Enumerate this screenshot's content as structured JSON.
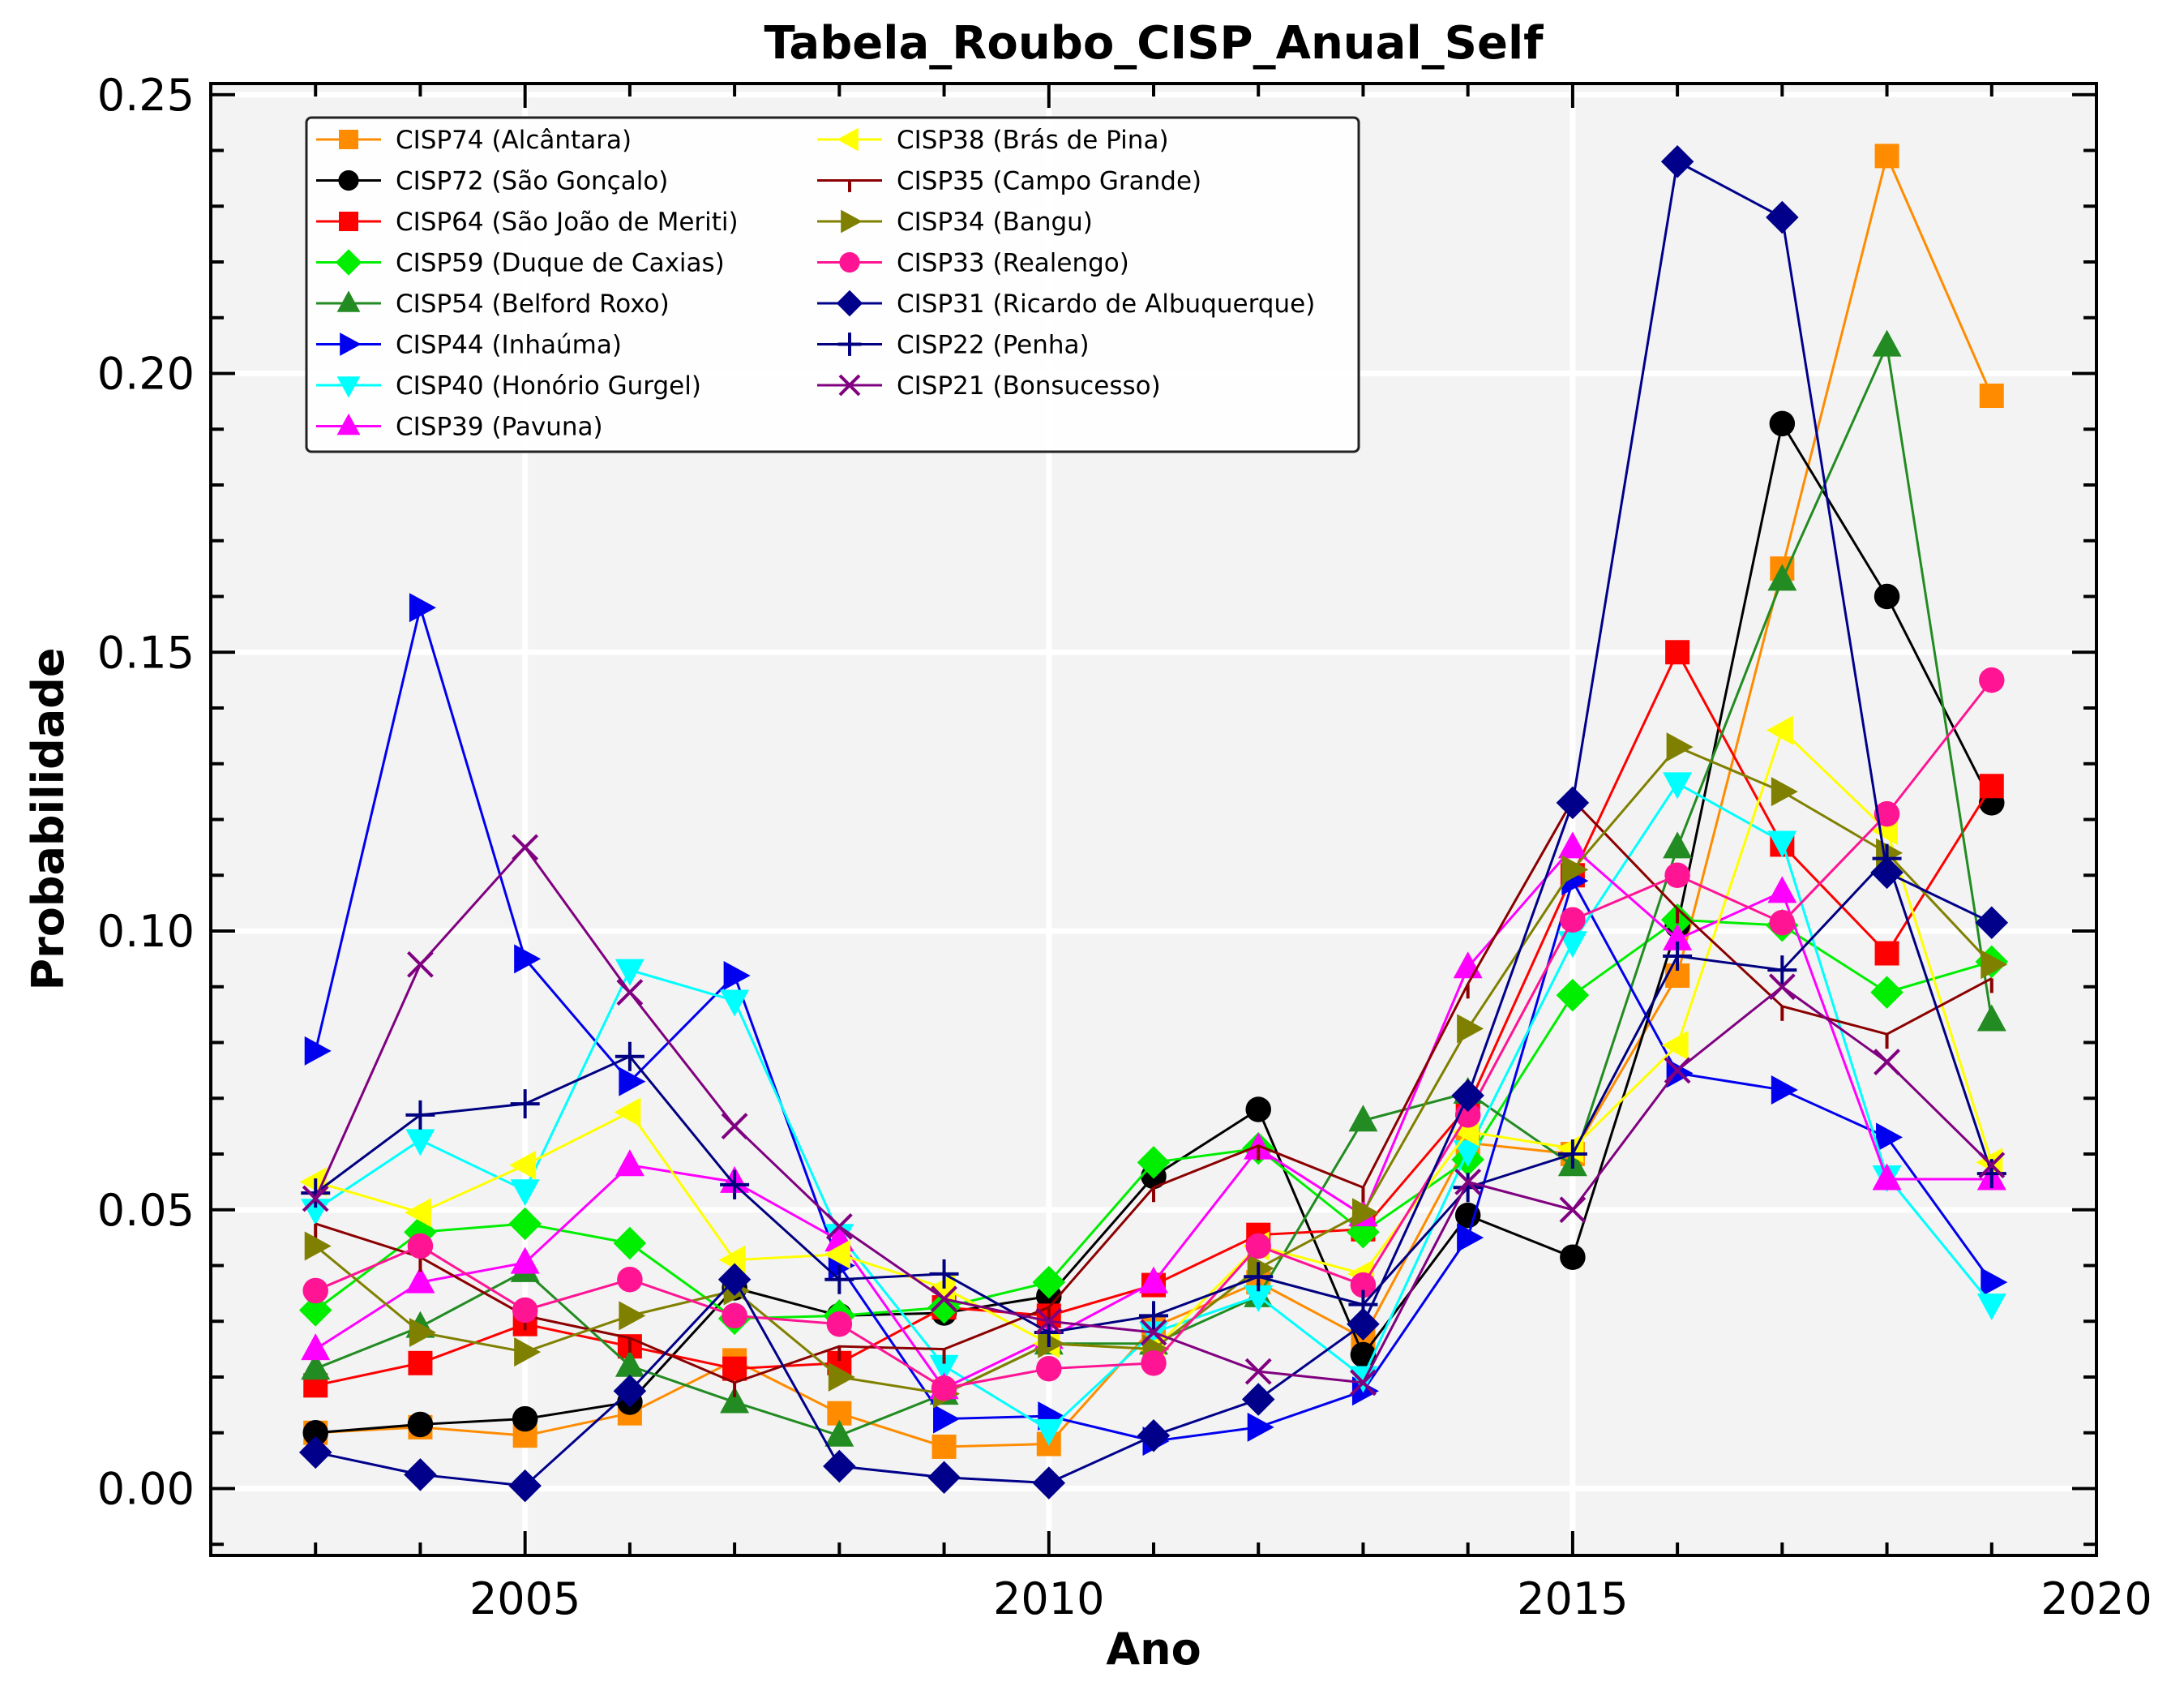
{
  "chart_data": {
    "type": "line",
    "title": "Tabela_Roubo_CISP_Anual_Self",
    "xlabel": "Ano",
    "ylabel": "Probabilidade",
    "xlim": [
      2002,
      2020
    ],
    "ylim": [
      -0.012,
      0.252
    ],
    "xticks": [
      "2005",
      "2010",
      "2015",
      "2020"
    ],
    "yticks": [
      "0.00",
      "0.05",
      "0.10",
      "0.15",
      "0.20",
      "0.25"
    ],
    "grid": true,
    "legend_position": "top-left",
    "x": [
      2003,
      2004,
      2005,
      2006,
      2007,
      2008,
      2009,
      2010,
      2011,
      2012,
      2013,
      2014,
      2015,
      2016,
      2017,
      2018,
      2019
    ],
    "series": [
      {
        "name": "CISP74 (Alcântara)",
        "color": "#ff8c00",
        "marker": "square",
        "values": [
          0.01,
          0.011,
          0.0095,
          0.0135,
          0.023,
          0.0135,
          0.0075,
          0.008,
          0.029,
          0.037,
          0.027,
          0.062,
          0.06,
          0.092,
          0.165,
          0.239,
          0.196
        ]
      },
      {
        "name": "CISP72 (São Gonçalo)",
        "color": "#000000",
        "marker": "circle",
        "values": [
          0.01,
          0.0115,
          0.0125,
          0.0155,
          0.036,
          0.031,
          0.0315,
          0.0345,
          0.056,
          0.068,
          0.024,
          0.049,
          0.0415,
          0.101,
          0.191,
          0.16,
          0.123
        ]
      },
      {
        "name": "CISP64 (São João de Meriti)",
        "color": "#ff0000",
        "marker": "square",
        "values": [
          0.0185,
          0.0225,
          0.0295,
          0.0255,
          0.0215,
          0.0225,
          0.0325,
          0.031,
          0.0365,
          0.0455,
          0.0465,
          0.0685,
          0.11,
          0.15,
          0.1155,
          0.096,
          0.126
        ]
      },
      {
        "name": "CISP59 (Duque de Caxias)",
        "color": "#00ee00",
        "marker": "diamond",
        "values": [
          0.032,
          0.046,
          0.0475,
          0.044,
          0.0305,
          0.031,
          0.0325,
          0.037,
          0.0585,
          0.061,
          0.046,
          0.059,
          0.0885,
          0.102,
          0.101,
          0.089,
          0.0945
        ]
      },
      {
        "name": "CISP54 (Belford Roxo)",
        "color": "#228b22",
        "marker": "triangle-up",
        "values": [
          0.0215,
          0.029,
          0.039,
          0.022,
          0.0155,
          0.0095,
          0.017,
          0.026,
          0.026,
          0.0345,
          0.066,
          0.071,
          0.058,
          0.115,
          0.163,
          0.205,
          0.084
        ]
      },
      {
        "name": "CISP44 (Inhaúma)",
        "color": "#0000ee",
        "marker": "triangle-right",
        "values": [
          0.0785,
          0.158,
          0.095,
          0.073,
          0.092,
          0.04,
          0.0125,
          0.013,
          0.0085,
          0.011,
          0.0175,
          0.045,
          0.109,
          0.0745,
          0.0715,
          0.063,
          0.037
        ]
      },
      {
        "name": "CISP40 (Honório Gurgel)",
        "color": "#00ffff",
        "marker": "triangle-down",
        "values": [
          0.05,
          0.0625,
          0.0535,
          0.093,
          0.0875,
          0.0455,
          0.022,
          0.0105,
          0.028,
          0.0345,
          0.02,
          0.0605,
          0.098,
          0.1265,
          0.116,
          0.056,
          0.033
        ]
      },
      {
        "name": "CISP39 (Pavuna)",
        "color": "#ff00ff",
        "marker": "triangle-up",
        "values": [
          0.025,
          0.037,
          0.0405,
          0.058,
          0.055,
          0.0445,
          0.018,
          0.027,
          0.037,
          0.061,
          0.049,
          0.0935,
          0.115,
          0.0985,
          0.107,
          0.0555,
          0.0555
        ]
      },
      {
        "name": "CISP38 (Brás de Pina)",
        "color": "#ffff00",
        "marker": "triangle-left",
        "values": [
          0.055,
          0.0495,
          0.058,
          0.0675,
          0.041,
          0.042,
          0.036,
          0.026,
          0.025,
          0.0435,
          0.0385,
          0.064,
          0.061,
          0.0795,
          0.136,
          0.118,
          0.0585
        ]
      },
      {
        "name": "CISP35 (Campo Grande)",
        "color": "#8b0000",
        "marker": "tickdown",
        "values": [
          0.0475,
          0.0415,
          0.031,
          0.027,
          0.019,
          0.0255,
          0.025,
          0.0325,
          0.054,
          0.0615,
          0.054,
          0.0905,
          0.1235,
          0.104,
          0.0865,
          0.0815,
          0.0915
        ]
      },
      {
        "name": "CISP34 (Bangu)",
        "color": "#808000",
        "marker": "triangle-right",
        "values": [
          0.0435,
          0.028,
          0.0245,
          0.031,
          0.0355,
          0.02,
          0.017,
          0.026,
          0.025,
          0.0395,
          0.0495,
          0.0825,
          0.111,
          0.133,
          0.125,
          0.114,
          0.094
        ]
      },
      {
        "name": "CISP33 (Realengo)",
        "color": "#ff1493",
        "marker": "circle",
        "values": [
          0.0355,
          0.0435,
          0.032,
          0.0375,
          0.031,
          0.0295,
          0.018,
          0.0215,
          0.0225,
          0.0435,
          0.0365,
          0.067,
          0.102,
          0.11,
          0.1015,
          0.121,
          0.145
        ]
      },
      {
        "name": "CISP31 (Ricardo de Albuquerque)",
        "color": "#00008b",
        "marker": "diamond",
        "values": [
          0.0065,
          0.0025,
          0.0005,
          0.0175,
          0.0375,
          0.004,
          0.002,
          0.001,
          0.0095,
          0.016,
          0.0295,
          0.0705,
          0.123,
          0.238,
          0.228,
          0.1105,
          0.1015
        ]
      },
      {
        "name": "CISP22 (Penha)",
        "color": "#000080",
        "marker": "plus",
        "values": [
          0.053,
          0.067,
          0.069,
          0.0775,
          0.0545,
          0.0375,
          0.0385,
          0.028,
          0.031,
          0.038,
          0.033,
          0.054,
          0.06,
          0.0955,
          0.093,
          0.113,
          0.0565
        ]
      },
      {
        "name": "CISP21 (Bonsucesso)",
        "color": "#800080",
        "marker": "x",
        "values": [
          0.052,
          0.094,
          0.115,
          0.089,
          0.065,
          0.047,
          0.034,
          0.03,
          0.028,
          0.021,
          0.019,
          0.055,
          0.05,
          0.075,
          0.09,
          0.0765,
          0.058
        ]
      }
    ]
  }
}
